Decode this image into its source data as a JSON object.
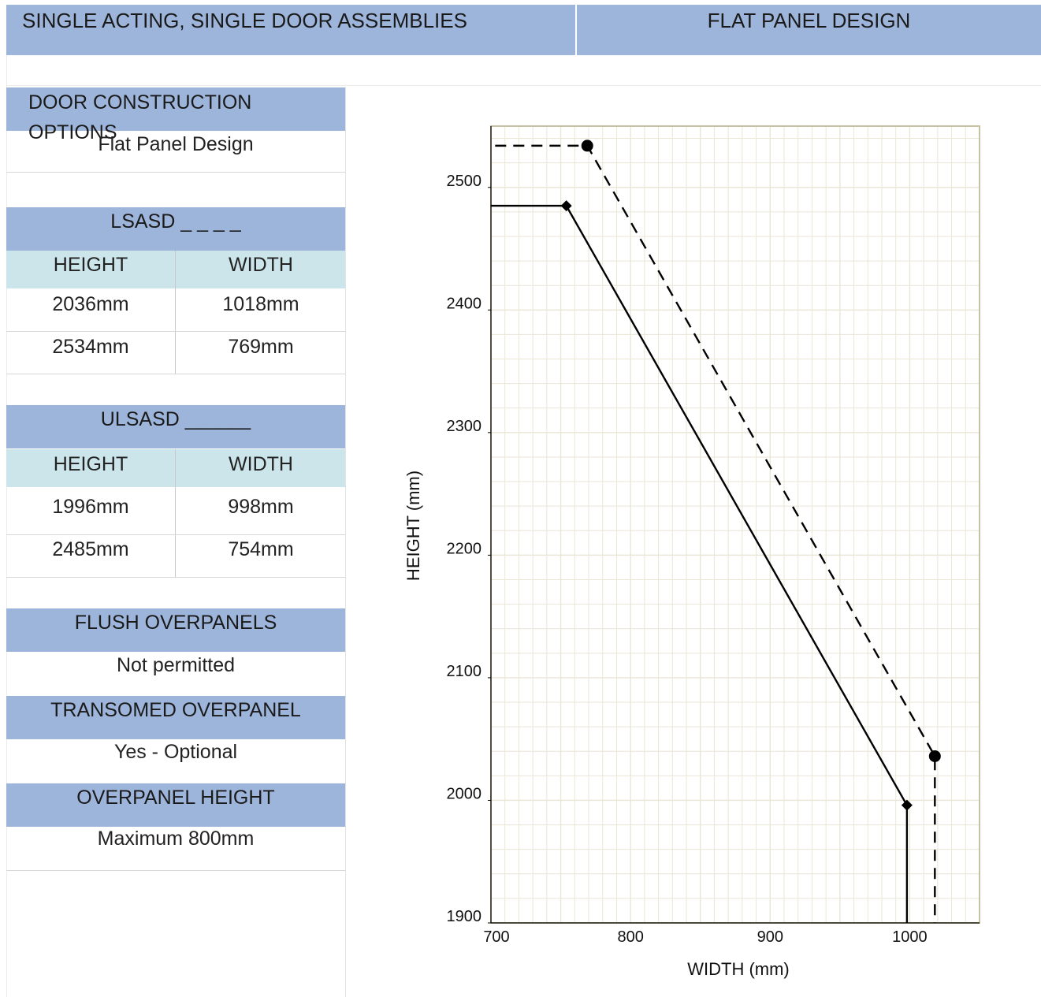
{
  "header": {
    "left_title": "SINGLE ACTING, SINGLE DOOR ASSEMBLIES",
    "right_title": "FLAT PANEL DESIGN"
  },
  "panel": {
    "construction": {
      "title": "DOOR CONSTRUCTION OPTIONS",
      "value": "Flat Panel Design"
    },
    "lsasd": {
      "title": "LSASD _ _ _ _",
      "col_height": "HEIGHT",
      "col_width": "WIDTH",
      "rows": [
        {
          "height": "2036mm",
          "width": "1018mm"
        },
        {
          "height": "2534mm",
          "width": "769mm"
        }
      ]
    },
    "ulsasd": {
      "title": "ULSASD ______",
      "col_height": "HEIGHT",
      "col_width": "WIDTH",
      "rows": [
        {
          "height": "1996mm",
          "width": "998mm"
        },
        {
          "height": "2485mm",
          "width": "754mm"
        }
      ]
    },
    "flush": {
      "title": "FLUSH OVERPANELS",
      "value": "Not permitted"
    },
    "transomed": {
      "title": "TRANSOMED OVERPANEL",
      "value": "Yes - Optional"
    },
    "overpanel_height": {
      "title": "OVERPANEL HEIGHT",
      "value": "Maximum 800mm"
    }
  },
  "chart_data": {
    "type": "line",
    "title": "",
    "xlabel": "WIDTH (mm)",
    "ylabel": "HEIGHT (mm)",
    "xlim": [
      700,
      1050
    ],
    "ylim": [
      1900,
      2550
    ],
    "x_ticks": [
      700,
      800,
      900,
      1000
    ],
    "y_ticks": [
      1900,
      2000,
      2100,
      2200,
      2300,
      2400,
      2500
    ],
    "grid": true,
    "series": [
      {
        "style": "dashed",
        "marker": "circle",
        "points": [
          [
            703,
            2534
          ],
          [
            769,
            2534
          ],
          [
            1018,
            2036
          ],
          [
            1018,
            1900
          ]
        ],
        "marked_points": [
          [
            769,
            2534
          ],
          [
            1018,
            2036
          ]
        ]
      },
      {
        "style": "solid",
        "marker": "diamond",
        "points": [
          [
            700,
            2485
          ],
          [
            754,
            2485
          ],
          [
            998,
            1996
          ],
          [
            998,
            1900
          ]
        ],
        "marked_points": [
          [
            754,
            2485
          ],
          [
            998,
            1996
          ]
        ]
      }
    ],
    "colors": {
      "grid": "#e9e6d6",
      "frame": "#c9c2a2",
      "line": "#000000"
    }
  }
}
